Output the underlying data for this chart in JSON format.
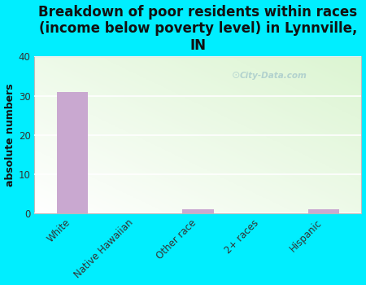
{
  "title": "Breakdown of poor residents within races\n(income below poverty level) in Lynnville,\nIN",
  "categories": [
    "White",
    "Native Hawaiian",
    "Other race",
    "2+ races",
    "Hispanic"
  ],
  "values": [
    31,
    0,
    1,
    0,
    1
  ],
  "bar_color": "#c9a8d0",
  "ylabel": "absolute numbers",
  "ylim": [
    0,
    40
  ],
  "yticks": [
    0,
    10,
    20,
    30,
    40
  ],
  "background_color": "#00eeff",
  "watermark": "City-Data.com",
  "title_fontsize": 12,
  "ylabel_fontsize": 9,
  "tick_fontsize": 8.5,
  "grid_color": "#dddddd"
}
